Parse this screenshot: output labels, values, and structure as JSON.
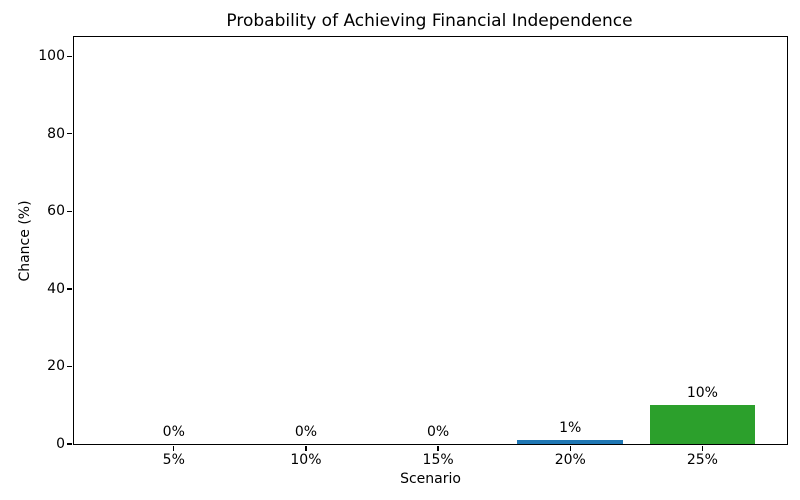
{
  "figure": {
    "background": "#ffffff",
    "text_color": "#000000",
    "spine_color": "#000000"
  },
  "chart_data": {
    "type": "bar",
    "title": "Probability of Achieving Financial Independence",
    "xlabel": "Scenario",
    "ylabel": "Chance (%)",
    "categories": [
      "5%",
      "10%",
      "15%",
      "20%",
      "25%"
    ],
    "values": [
      0,
      0,
      0,
      1,
      10
    ],
    "bars": [
      {
        "category": "5%",
        "value": 0,
        "label": "0%",
        "color": null
      },
      {
        "category": "10%",
        "value": 0,
        "label": "0%",
        "color": null
      },
      {
        "category": "15%",
        "value": 0,
        "label": "0%",
        "color": null
      },
      {
        "category": "20%",
        "value": 1,
        "label": "1%",
        "color": "#1f77b4"
      },
      {
        "category": "25%",
        "value": 10,
        "label": "10%",
        "color": "#2ca02c"
      }
    ],
    "ylim": [
      0,
      105
    ],
    "yticks": [
      0,
      20,
      40,
      60,
      80,
      100
    ],
    "grid": false,
    "legend": null
  }
}
